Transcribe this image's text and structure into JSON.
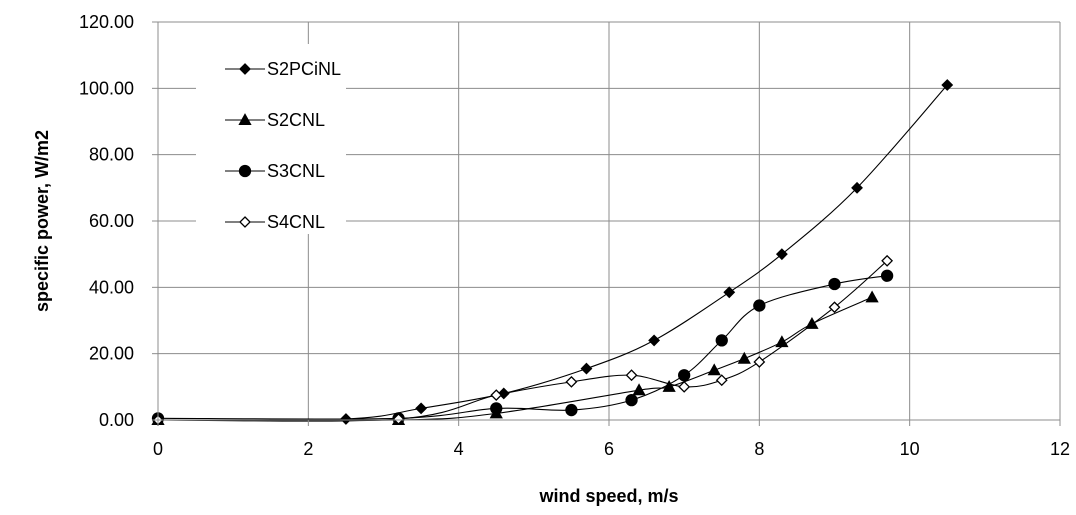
{
  "chart_data": {
    "type": "scatter",
    "title": "",
    "xlabel": "wind speed, m/s",
    "ylabel": "specific power, W/m2",
    "xlim": [
      0,
      12
    ],
    "ylim": [
      0,
      120
    ],
    "x_ticks": [
      "0",
      "2",
      "4",
      "6",
      "8",
      "10",
      "12"
    ],
    "y_ticks": [
      "0.00",
      "20.00",
      "40.00",
      "60.00",
      "80.00",
      "100.00",
      "120.00"
    ],
    "grid": true,
    "legend_position": "top-left",
    "line_style": "smooth",
    "series": [
      {
        "name": "S2PCiNL",
        "marker": "diamond",
        "filled": true,
        "x": [
          0,
          2.5,
          3.5,
          4.6,
          5.7,
          6.6,
          7.6,
          8.3,
          9.3,
          10.5
        ],
        "y": [
          0,
          0.3,
          3.5,
          8,
          15.5,
          24,
          38.5,
          50,
          70,
          101
        ]
      },
      {
        "name": "S2CNL",
        "marker": "triangle",
        "filled": true,
        "x": [
          0,
          3.2,
          4.5,
          6.4,
          6.8,
          7.4,
          7.8,
          8.3,
          8.7,
          9.5
        ],
        "y": [
          0,
          0,
          2,
          9,
          10,
          15,
          18.5,
          23.5,
          29,
          37
        ]
      },
      {
        "name": "S3CNL",
        "marker": "circle",
        "filled": true,
        "x": [
          0,
          3.2,
          4.5,
          5.5,
          6.3,
          7,
          7.5,
          8,
          9,
          9.7
        ],
        "y": [
          0.5,
          0.5,
          3.5,
          3,
          6,
          13.5,
          24,
          34.5,
          41,
          43.5
        ]
      },
      {
        "name": "S4CNL",
        "marker": "diamond",
        "filled": false,
        "x": [
          0,
          3.2,
          4.5,
          5.5,
          6.3,
          7,
          7.5,
          8,
          9,
          9.7
        ],
        "y": [
          0,
          0.3,
          7.5,
          11.5,
          13.5,
          10,
          12,
          17.5,
          34,
          48
        ]
      }
    ]
  }
}
